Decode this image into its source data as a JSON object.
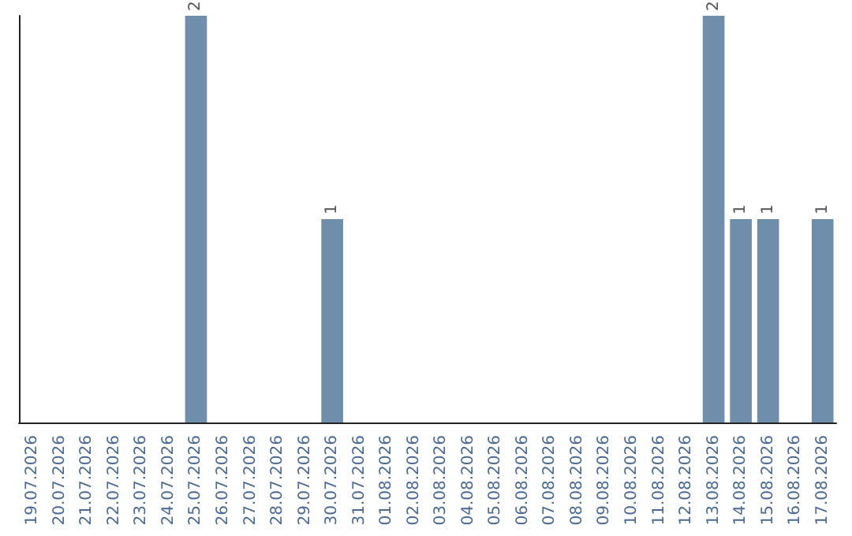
{
  "chart_data": {
    "type": "bar",
    "categories": [
      "19.07.2026",
      "20.07.2026",
      "21.07.2026",
      "22.07.2026",
      "23.07.2026",
      "24.07.2026",
      "25.07.2026",
      "26.07.2026",
      "27.07.2026",
      "28.07.2026",
      "29.07.2026",
      "30.07.2026",
      "31.07.2026",
      "01.08.2026",
      "02.08.2026",
      "03.08.2026",
      "04.08.2026",
      "05.08.2026",
      "06.08.2026",
      "07.08.2026",
      "08.08.2026",
      "09.08.2026",
      "10.08.2026",
      "11.08.2026",
      "12.08.2026",
      "13.08.2026",
      "14.08.2026",
      "15.08.2026",
      "16.08.2026",
      "17.08.2026"
    ],
    "values": [
      0,
      0,
      0,
      0,
      0,
      0,
      2,
      0,
      0,
      0,
      0,
      1,
      0,
      0,
      0,
      0,
      0,
      0,
      0,
      0,
      0,
      0,
      0,
      0,
      0,
      2,
      1,
      1,
      0,
      1
    ],
    "value_labels": [
      null,
      null,
      null,
      null,
      null,
      null,
      "2",
      null,
      null,
      null,
      null,
      "1",
      null,
      null,
      null,
      null,
      null,
      null,
      null,
      null,
      null,
      null,
      null,
      null,
      null,
      "2",
      "1",
      "1",
      null,
      "1"
    ],
    "color": "#6e8eab",
    "tick_labels": "x"
  }
}
